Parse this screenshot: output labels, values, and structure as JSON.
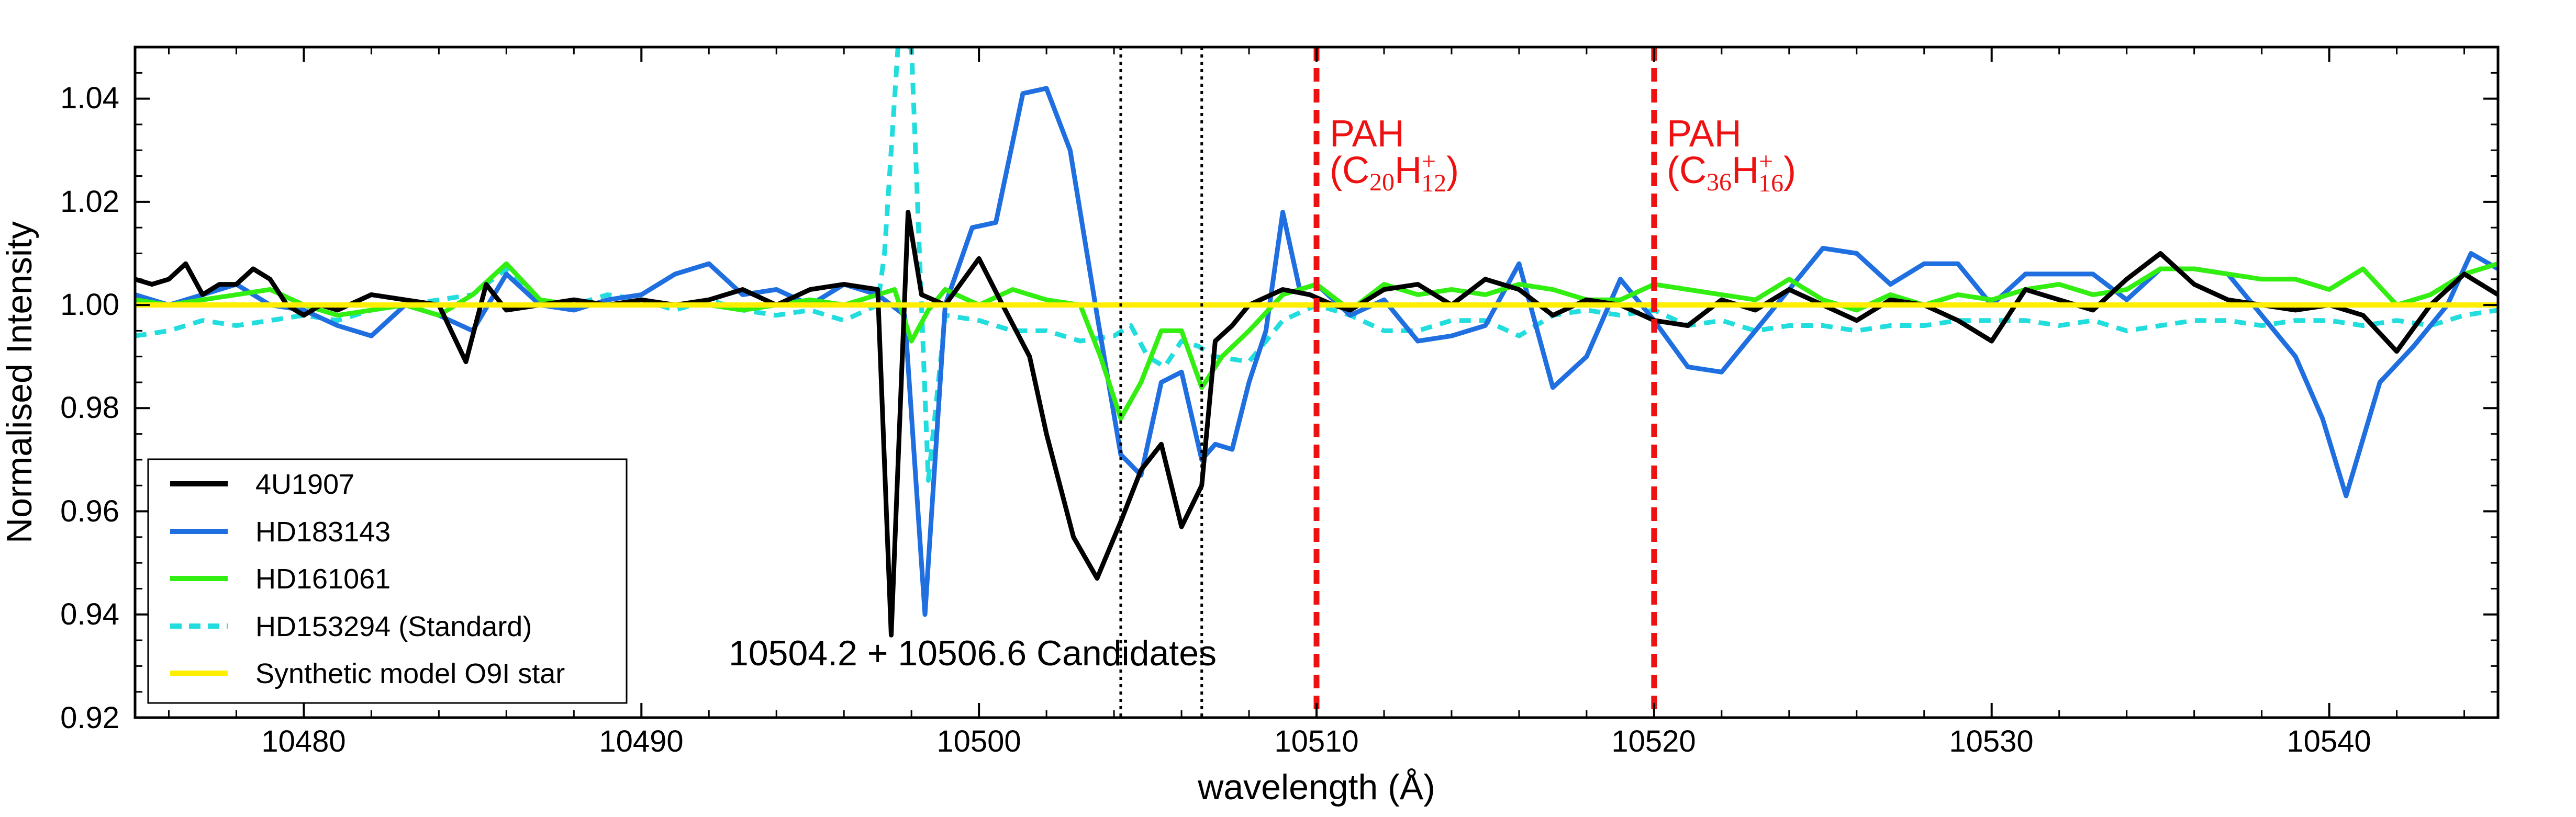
{
  "chart_data": {
    "type": "line",
    "xlabel": "wavelength (Å)",
    "ylabel": "Normalised Intensity",
    "xlim": [
      10475,
      10545
    ],
    "ylim": [
      0.92,
      1.05
    ],
    "x_ticks": [
      10480,
      10490,
      10500,
      10510,
      10520,
      10530,
      10540
    ],
    "y_ticks": [
      0.92,
      0.94,
      0.96,
      0.98,
      1.0,
      1.02,
      1.04
    ],
    "x_tick_labels": [
      "10480",
      "10490",
      "10500",
      "10510",
      "10520",
      "10530",
      "10540"
    ],
    "y_tick_labels": [
      "0.92",
      "0.94",
      "0.96",
      "0.98",
      "1.00",
      "1.02",
      "1.04"
    ],
    "legend_position": "bottom-left",
    "series": [
      {
        "name": "4U1907",
        "color": "#000000",
        "style": "solid",
        "x": [
          10475,
          10475.5,
          10476,
          10476.5,
          10477,
          10477.5,
          10478,
          10478.5,
          10479,
          10479.5,
          10480,
          10480.5,
          10481,
          10482,
          10483,
          10484,
          10484.8,
          10485.4,
          10486,
          10487,
          10488,
          10489,
          10490,
          10491,
          10492,
          10493,
          10494,
          10495,
          10496,
          10497,
          10497.4,
          10497.9,
          10498.3,
          10499,
          10500,
          10500.7,
          10501.5,
          10502,
          10502.8,
          10503.5,
          10504.2,
          10504.8,
          10505.4,
          10506,
          10506.6,
          10507,
          10507.5,
          10508,
          10509,
          10509.8,
          10510.5,
          10511,
          10512,
          10513,
          10514,
          10515,
          10516,
          10517,
          10518,
          10519,
          10520,
          10521,
          10522,
          10523,
          10524,
          10525,
          10526,
          10527,
          10528,
          10529,
          10530,
          10531,
          10532,
          10533,
          10534,
          10535,
          10536,
          10537,
          10538,
          10539,
          10540,
          10541,
          10542,
          10543,
          10544,
          10545
        ],
        "values": [
          1.005,
          1.004,
          1.005,
          1.008,
          1.002,
          1.004,
          1.004,
          1.007,
          1.005,
          1.0,
          0.998,
          1.0,
          0.999,
          1.002,
          1.001,
          1.0,
          0.989,
          1.004,
          0.999,
          1.0,
          1.001,
          1.0,
          1.001,
          1.0,
          1.001,
          1.003,
          1.0,
          1.003,
          1.004,
          1.003,
          0.936,
          1.018,
          1.002,
          1.0,
          1.009,
          1.0,
          0.99,
          0.975,
          0.955,
          0.947,
          0.958,
          0.968,
          0.973,
          0.957,
          0.965,
          0.993,
          0.996,
          1.0,
          1.003,
          1.002,
          1.0,
          0.999,
          1.003,
          1.004,
          1.0,
          1.005,
          1.003,
          0.998,
          1.001,
          1.0,
          0.997,
          0.996,
          1.001,
          0.999,
          1.003,
          1.0,
          0.997,
          1.001,
          1.0,
          0.997,
          0.993,
          1.003,
          1.001,
          0.999,
          1.005,
          1.01,
          1.004,
          1.001,
          1.0,
          0.999,
          1.0,
          0.998,
          0.991,
          1.0,
          1.006,
          1.002
        ]
      },
      {
        "name": "HD183143",
        "color": "#1f6fe0",
        "style": "solid",
        "x": [
          10475,
          10476,
          10477,
          10478,
          10479,
          10480,
          10481,
          10482,
          10483,
          10484,
          10485,
          10486,
          10487,
          10488,
          10489,
          10490,
          10491,
          10492,
          10493,
          10494,
          10495,
          10496,
          10497,
          10497.8,
          10498.4,
          10499,
          10499.8,
          10500.5,
          10501.3,
          10502,
          10502.7,
          10503.5,
          10504.2,
          10504.8,
          10505.4,
          10506,
          10506.6,
          10507,
          10507.5,
          10508,
          10508.5,
          10509,
          10509.5,
          10510,
          10511,
          10512,
          10513,
          10514,
          10515,
          10516,
          10517,
          10518,
          10519,
          10520,
          10521,
          10522,
          10523,
          10524,
          10525,
          10526,
          10527,
          10528,
          10529,
          10530,
          10531,
          10532,
          10533,
          10534,
          10535,
          10536,
          10537,
          10538,
          10539,
          10539.8,
          10540.5,
          10541.5,
          10542.5,
          10543.5,
          10544.2,
          10545
        ],
        "values": [
          1.002,
          1.0,
          1.002,
          1.004,
          1.0,
          0.999,
          0.996,
          0.994,
          1.0,
          0.998,
          0.995,
          1.006,
          1.0,
          0.999,
          1.001,
          1.002,
          1.006,
          1.008,
          1.002,
          1.003,
          1.0,
          1.004,
          1.002,
          0.998,
          0.94,
          1.0,
          1.015,
          1.016,
          1.041,
          1.042,
          1.03,
          0.998,
          0.971,
          0.967,
          0.985,
          0.987,
          0.97,
          0.973,
          0.972,
          0.985,
          0.995,
          1.018,
          1.003,
          1.004,
          0.998,
          1.001,
          0.993,
          0.994,
          0.996,
          1.008,
          0.984,
          0.99,
          1.005,
          0.997,
          0.988,
          0.987,
          0.995,
          1.003,
          1.011,
          1.01,
          1.004,
          1.008,
          1.008,
          1.0,
          1.006,
          1.006,
          1.006,
          1.001,
          1.007,
          1.007,
          1.006,
          0.998,
          0.99,
          0.978,
          0.963,
          0.985,
          0.992,
          1.0,
          1.01,
          1.007
        ]
      },
      {
        "name": "HD161061",
        "color": "#33ee11",
        "style": "solid",
        "x": [
          10475,
          10476,
          10477,
          10478,
          10479,
          10480,
          10481,
          10482,
          10483,
          10484,
          10485,
          10486,
          10487,
          10488,
          10489,
          10490,
          10491,
          10492,
          10493,
          10494,
          10495,
          10496,
          10497,
          10497.5,
          10498,
          10498.5,
          10499,
          10500,
          10501,
          10502,
          10503,
          10503.6,
          10504.2,
          10504.8,
          10505.4,
          10506,
          10506.6,
          10507.2,
          10508,
          10509,
          10510,
          10511,
          10512,
          10513,
          10514,
          10515,
          10516,
          10517,
          10518,
          10519,
          10520,
          10521,
          10522,
          10523,
          10524,
          10525,
          10526,
          10527,
          10528,
          10529,
          10530,
          10531,
          10532,
          10533,
          10534,
          10535,
          10536,
          10537,
          10538,
          10539,
          10540,
          10541,
          10542,
          10543,
          10544,
          10545
        ],
        "values": [
          1.001,
          1.0,
          1.001,
          1.002,
          1.003,
          1.0,
          0.998,
          0.999,
          1.0,
          0.998,
          1.002,
          1.008,
          1.001,
          1.0,
          1.0,
          1.0,
          1.0,
          1.0,
          0.999,
          1.0,
          1.001,
          1.0,
          1.002,
          1.003,
          0.993,
          0.999,
          1.003,
          1.0,
          1.003,
          1.001,
          1.0,
          0.99,
          0.978,
          0.985,
          0.995,
          0.995,
          0.984,
          0.99,
          0.995,
          1.002,
          1.004,
          0.999,
          1.004,
          1.002,
          1.003,
          1.002,
          1.004,
          1.003,
          1.001,
          1.001,
          1.004,
          1.003,
          1.002,
          1.001,
          1.005,
          1.001,
          0.999,
          1.002,
          1.0,
          1.002,
          1.001,
          1.003,
          1.004,
          1.002,
          1.003,
          1.007,
          1.007,
          1.006,
          1.005,
          1.005,
          1.003,
          1.007,
          1.0,
          1.002,
          1.006,
          1.008
        ]
      },
      {
        "name": "HD153294 (Standard)",
        "color": "#22dddd",
        "style": "dashed",
        "x": [
          10475,
          10476,
          10477,
          10478,
          10479,
          10480,
          10481,
          10482,
          10483,
          10484,
          10485,
          10486,
          10487,
          10488,
          10489,
          10490,
          10491,
          10492,
          10493,
          10494,
          10495,
          10496,
          10497,
          10497.2,
          10497.6,
          10498,
          10498.5,
          10499,
          10500,
          10501,
          10502,
          10503,
          10504,
          10504.5,
          10505,
          10505.5,
          10506,
          10506.5,
          10507,
          10508,
          10509,
          10510,
          10511,
          10512,
          10513,
          10514,
          10515,
          10516,
          10517,
          10518,
          10519,
          10520,
          10521,
          10522,
          10523,
          10524,
          10525,
          10526,
          10527,
          10528,
          10529,
          10530,
          10531,
          10532,
          10533,
          10534,
          10535,
          10536,
          10537,
          10538,
          10539,
          10540,
          10541,
          10542,
          10543,
          10544,
          10545
        ],
        "values": [
          0.994,
          0.995,
          0.997,
          0.996,
          0.997,
          0.998,
          0.997,
          0.999,
          1.0,
          1.001,
          1.002,
          1.007,
          1.0,
          1.0,
          1.002,
          1.001,
          0.999,
          1.001,
          0.999,
          0.998,
          0.999,
          0.997,
          1.0,
          1.01,
          1.05,
          1.05,
          0.966,
          0.998,
          0.997,
          0.995,
          0.995,
          0.993,
          0.994,
          0.996,
          0.99,
          0.988,
          0.993,
          0.992,
          0.99,
          0.989,
          0.997,
          1.0,
          0.998,
          0.995,
          0.995,
          0.997,
          0.997,
          0.994,
          0.998,
          0.999,
          0.998,
          0.999,
          0.996,
          0.997,
          0.995,
          0.996,
          0.996,
          0.995,
          0.996,
          0.996,
          0.997,
          0.997,
          0.997,
          0.996,
          0.997,
          0.995,
          0.996,
          0.997,
          0.997,
          0.996,
          0.997,
          0.997,
          0.996,
          0.997,
          0.996,
          0.998,
          0.999
        ]
      },
      {
        "name": "Synthetic model O9I star",
        "color": "#ffee00",
        "style": "solid",
        "x": [
          10475,
          10545
        ],
        "values": [
          1.0,
          1.0
        ]
      }
    ],
    "vertical_lines": [
      {
        "x": 10504.2,
        "color": "#000000",
        "style": "dotted"
      },
      {
        "x": 10506.6,
        "color": "#000000",
        "style": "dotted"
      },
      {
        "x": 10510,
        "color": "#ee1111",
        "style": "dashed"
      },
      {
        "x": 10520,
        "color": "#ee1111",
        "style": "dashed"
      }
    ],
    "annotations": {
      "candidates": {
        "text": "10504.2 + 10506.6 Candidates",
        "x": 10493.9,
        "y": 0.9315
      },
      "pah_1": {
        "label": "PAH",
        "open": "(C",
        "sub_c": "20",
        "h": "H",
        "sub_h": "12",
        "sup": "+",
        "close": ")",
        "x": 10510.4,
        "y": 1.025
      },
      "pah_2": {
        "label": "PAH",
        "open": "(C",
        "sub_c": "36",
        "h": "H",
        "sub_h": "16",
        "sup": "+",
        "close": ")",
        "x": 10520.4,
        "y": 1.025
      }
    }
  }
}
